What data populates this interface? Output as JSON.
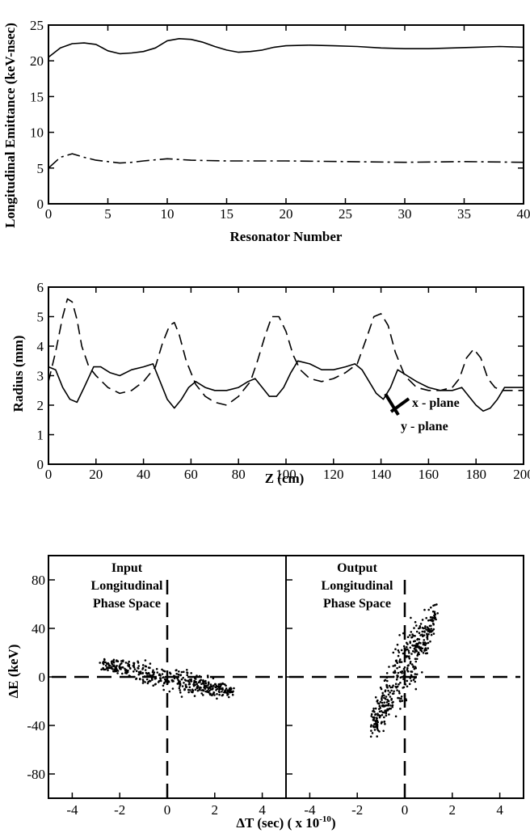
{
  "chart_data": [
    {
      "type": "line",
      "title": "",
      "xlabel": "Resonator Number",
      "ylabel": "Longitudinal Emittance  (keV-nsec)",
      "xlim": [
        0,
        40
      ],
      "ylim": [
        0,
        25
      ],
      "xticks": [
        0,
        5,
        10,
        15,
        20,
        25,
        30,
        35,
        40
      ],
      "yticks": [
        0,
        5,
        10,
        15,
        20,
        25
      ],
      "grid": false,
      "series": [
        {
          "style": "solid",
          "x": [
            0,
            1,
            2,
            3,
            4,
            5,
            6,
            7,
            8,
            9,
            10,
            11,
            12,
            13,
            14,
            15,
            16,
            17,
            18,
            19,
            20,
            22,
            24,
            26,
            28,
            30,
            32,
            34,
            36,
            38,
            40
          ],
          "y": [
            20.5,
            21.8,
            22.4,
            22.5,
            22.3,
            21.4,
            21.0,
            21.1,
            21.3,
            21.8,
            22.8,
            23.1,
            23.0,
            22.6,
            22.0,
            21.5,
            21.2,
            21.3,
            21.5,
            21.9,
            22.1,
            22.2,
            22.1,
            22.0,
            21.8,
            21.7,
            21.7,
            21.8,
            21.9,
            22.0,
            21.9
          ]
        },
        {
          "style": "dash-dot",
          "x": [
            0,
            1,
            2,
            3,
            4,
            5,
            6,
            7,
            8,
            10,
            12,
            15,
            20,
            25,
            30,
            35,
            40
          ],
          "y": [
            5.0,
            6.5,
            7.0,
            6.5,
            6.1,
            5.9,
            5.7,
            5.8,
            6.0,
            6.3,
            6.1,
            6.0,
            6.0,
            5.9,
            5.8,
            5.9,
            5.8
          ]
        }
      ]
    },
    {
      "type": "line",
      "title": "",
      "xlabel": "Z  (cm)",
      "ylabel": "Radius  (mm)",
      "xlim": [
        0,
        200
      ],
      "ylim": [
        0,
        6
      ],
      "xticks": [
        0,
        20,
        40,
        60,
        80,
        100,
        120,
        140,
        160,
        180,
        200
      ],
      "yticks": [
        0,
        1,
        2,
        3,
        4,
        5,
        6
      ],
      "grid": false,
      "series": [
        {
          "name": "x - plane",
          "style": "dashed",
          "x": [
            0,
            3,
            6,
            8,
            10,
            12,
            14,
            17,
            20,
            25,
            30,
            35,
            40,
            45,
            48,
            51,
            53,
            55,
            58,
            62,
            66,
            70,
            75,
            80,
            85,
            88,
            91,
            94,
            97,
            100,
            103,
            106,
            110,
            115,
            120,
            125,
            130,
            134,
            137,
            140,
            143,
            146,
            150,
            155,
            160,
            165,
            170,
            173,
            176,
            179,
            182,
            185,
            188,
            191,
            195,
            200
          ],
          "y": [
            2.8,
            3.8,
            5.0,
            5.6,
            5.5,
            4.9,
            4.0,
            3.3,
            3.0,
            2.6,
            2.4,
            2.5,
            2.8,
            3.3,
            4.1,
            4.7,
            4.8,
            4.4,
            3.5,
            2.7,
            2.3,
            2.1,
            2.0,
            2.3,
            2.8,
            3.5,
            4.3,
            5.0,
            5.0,
            4.5,
            3.7,
            3.2,
            2.9,
            2.8,
            2.9,
            3.1,
            3.4,
            4.3,
            5.0,
            5.1,
            4.7,
            3.8,
            3.0,
            2.6,
            2.5,
            2.5,
            2.6,
            2.9,
            3.6,
            3.9,
            3.6,
            2.9,
            2.6,
            2.5,
            2.5,
            2.5
          ]
        },
        {
          "name": "y - plane",
          "style": "solid",
          "x": [
            0,
            3,
            6,
            9,
            12,
            15,
            19,
            22,
            26,
            30,
            35,
            40,
            44,
            47,
            50,
            53,
            56,
            59,
            62,
            66,
            70,
            75,
            80,
            84,
            87,
            90,
            93,
            96,
            99,
            102,
            105,
            110,
            115,
            120,
            125,
            129,
            132,
            135,
            138,
            141,
            144,
            147,
            151,
            155,
            160,
            165,
            170,
            174,
            177,
            180,
            183,
            186,
            189,
            192,
            196,
            200
          ],
          "y": [
            3.3,
            3.2,
            2.6,
            2.2,
            2.1,
            2.6,
            3.3,
            3.3,
            3.1,
            3.0,
            3.2,
            3.3,
            3.4,
            2.8,
            2.2,
            1.9,
            2.2,
            2.6,
            2.8,
            2.6,
            2.5,
            2.5,
            2.6,
            2.8,
            2.9,
            2.6,
            2.3,
            2.3,
            2.6,
            3.1,
            3.5,
            3.4,
            3.2,
            3.2,
            3.3,
            3.4,
            3.2,
            2.8,
            2.4,
            2.2,
            2.6,
            3.2,
            3.0,
            2.8,
            2.6,
            2.5,
            2.5,
            2.6,
            2.3,
            2.0,
            1.8,
            1.9,
            2.2,
            2.6,
            2.6,
            2.6
          ]
        }
      ]
    },
    {
      "type": "scatter",
      "title": "",
      "xlabel": "ΔT  (sec)   ( x 10",
      "xlabel_exp": "-10",
      "xlabel_close": ")",
      "ylabel": "ΔE  (keV)",
      "ylim": [
        -100,
        100
      ],
      "yticks": [
        -80,
        -40,
        0,
        40,
        80
      ],
      "grid": false,
      "panels": [
        {
          "title_lines": [
            "Input",
            "Longitudinal",
            "Phase Space"
          ],
          "xlim": [
            -5,
            5
          ],
          "xticks": [
            -4,
            -2,
            0,
            2,
            4
          ],
          "cloud": {
            "shape": "tilted-ellipse",
            "x_range": [
              -3.0,
              3.0
            ],
            "y_range": [
              -20,
              18
            ],
            "slope_keV_per_unit": -4.2,
            "points": 420
          }
        },
        {
          "title_lines": [
            "Output",
            "Longitudinal",
            "Phase Space"
          ],
          "xlim": [
            -5,
            5
          ],
          "xticks": [
            -4,
            -2,
            0,
            2,
            4
          ],
          "cloud": {
            "shape": "tilted-ellipse",
            "x_range": [
              -1.5,
              1.4
            ],
            "y_range": [
              -65,
              75
            ],
            "slope_keV_per_unit": 33,
            "points": 420
          }
        }
      ]
    }
  ],
  "labels": {
    "x_plane": "x - plane",
    "y_plane": "y - plane"
  }
}
